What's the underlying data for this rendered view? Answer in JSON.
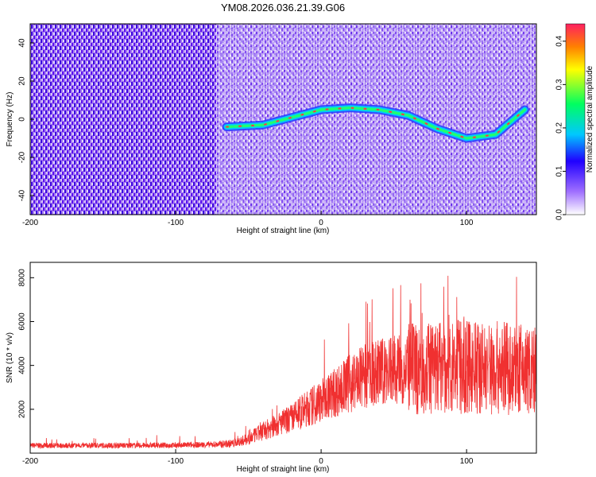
{
  "title": "YM08.2026.036.21.39.G06",
  "chart_data": [
    {
      "type": "heatmap",
      "xlabel": "Height of straight line (km)",
      "ylabel": "Frequency (Hz)",
      "xlim": [
        -200,
        148
      ],
      "ylim": [
        -50,
        50
      ],
      "xticks": [
        -200,
        -100,
        0,
        100
      ],
      "yticks": [
        -40,
        -20,
        0,
        20,
        40
      ],
      "colorbar": {
        "label": "Normalized spectral amplitude",
        "range": [
          0,
          0.44
        ],
        "ticks": [
          0.0,
          0.1,
          0.2,
          0.3,
          0.4
        ],
        "colors": [
          "#ffffff",
          "#a070ff",
          "#2000ff",
          "#00c8ff",
          "#00ff60",
          "#ffff00",
          "#ff2060"
        ]
      },
      "ridges": [
        {
          "name": "primary",
          "x": [
            -65,
            -40,
            -20,
            0,
            20,
            40,
            60,
            80,
            100,
            120,
            140
          ],
          "y": [
            -4,
            -3,
            1,
            5,
            6,
            5,
            2,
            -5,
            -10,
            -8,
            5
          ]
        }
      ],
      "grid": false
    },
    {
      "type": "line",
      "xlabel": "Height of straight line (km)",
      "ylabel": "SNR (10 * v/v)",
      "xlim": [
        -200,
        148
      ],
      "ylim": [
        0,
        8700
      ],
      "xticks": [
        -200,
        -100,
        0,
        100
      ],
      "yticks": [
        2000,
        4000,
        6000,
        8000
      ],
      "series": [
        {
          "color": "#f03030",
          "x": [
            -200,
            -150,
            -100,
            -70,
            -60,
            -50,
            -40,
            -30,
            -20,
            -10,
            0,
            10,
            20,
            30,
            40,
            50,
            60,
            70,
            80,
            90,
            100,
            110,
            120,
            130,
            140,
            148
          ],
          "y": [
            350,
            350,
            360,
            400,
            450,
            650,
            1000,
            1300,
            1600,
            2000,
            2400,
            2800,
            3200,
            3500,
            3700,
            3800,
            3800,
            3850,
            3900,
            3950,
            3900,
            3900,
            3900,
            3850,
            3800,
            3700
          ]
        }
      ],
      "grid": false
    }
  ]
}
